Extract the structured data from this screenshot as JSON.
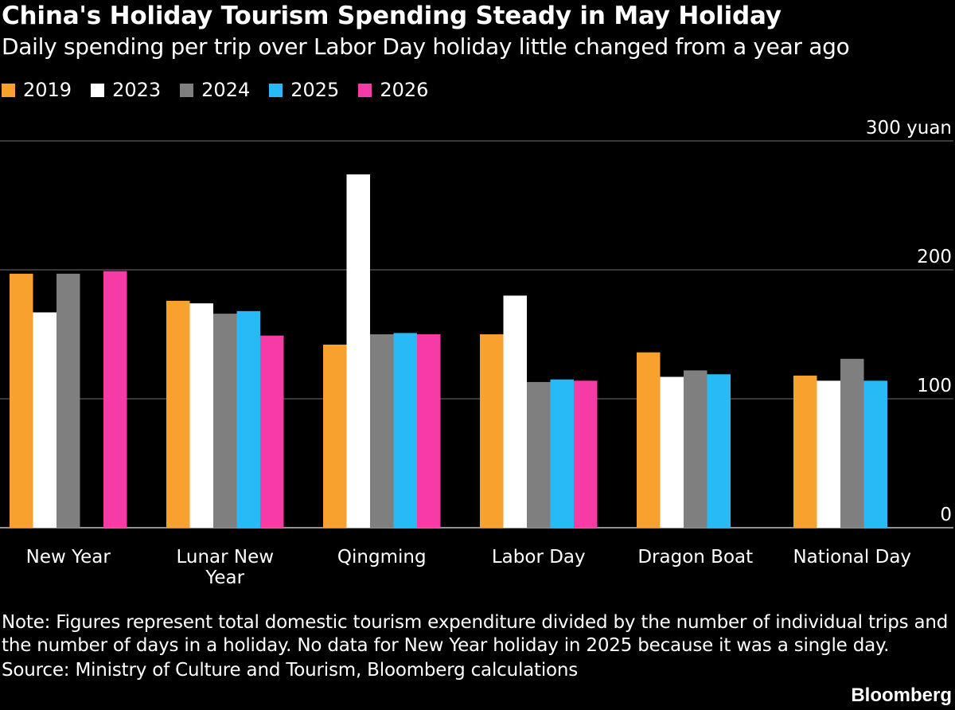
{
  "header": {
    "title": "China's Holiday Tourism Spending Steady in May Holiday",
    "subtitle": "Daily spending per trip over Labor Day holiday little changed from a year ago"
  },
  "footer": {
    "note": "Note: Figures represent total domestic tourism expenditure divided by the number of individual trips and the number of days in a holiday. No data for New Year holiday in 2025 because it was a single day.",
    "source": "Source: Ministry of Culture and Tourism, Bloomberg calculations",
    "brand": "Bloomberg"
  },
  "chart_data": {
    "type": "bar",
    "title": "China's Holiday Tourism Spending Steady in May Holiday",
    "subtitle": "Daily spending per trip over Labor Day holiday little changed from a year ago",
    "categories": [
      "New Year",
      "Lunar New Year",
      "Qingming",
      "Labor Day",
      "Dragon Boat",
      "National Day"
    ],
    "category_labels": [
      [
        "New Year"
      ],
      [
        "Lunar New",
        "Year"
      ],
      [
        "Qingming"
      ],
      [
        "Labor Day"
      ],
      [
        "Dragon Boat"
      ],
      [
        "National Day"
      ]
    ],
    "series": [
      {
        "name": "2019",
        "color": "#f9a12e",
        "values": [
          197,
          176,
          142,
          150,
          136,
          118
        ]
      },
      {
        "name": "2023",
        "color": "#ffffff",
        "values": [
          167,
          174,
          274,
          180,
          117,
          114
        ]
      },
      {
        "name": "2024",
        "color": "#7f7f7f",
        "values": [
          197,
          166,
          150,
          113,
          122,
          131
        ]
      },
      {
        "name": "2025",
        "color": "#27baf6",
        "values": [
          null,
          168,
          151,
          115,
          119,
          114
        ]
      },
      {
        "name": "2026",
        "color": "#f63ba7",
        "values": [
          199,
          149,
          150,
          114,
          null,
          null
        ]
      }
    ],
    "ylim": [
      0,
      300
    ],
    "yticks": [
      {
        "value": 0,
        "label": "0"
      },
      {
        "value": 100,
        "label": "100"
      },
      {
        "value": 200,
        "label": "200"
      },
      {
        "value": 300,
        "label": "300 yuan"
      }
    ],
    "xlabel": "",
    "ylabel": "",
    "grid": true,
    "legend_position": "top-left"
  }
}
